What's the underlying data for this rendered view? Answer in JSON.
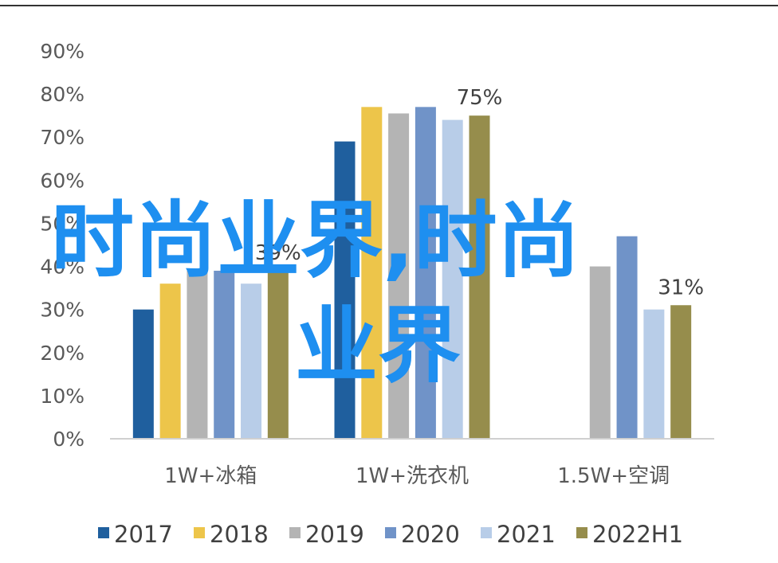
{
  "chart_data": {
    "type": "bar",
    "categories": [
      "1W+冰箱",
      "1W+洗衣机",
      "1.5W+空调"
    ],
    "series": [
      {
        "name": "2017",
        "color": "#1f5f9e",
        "values": [
          30,
          69,
          null
        ]
      },
      {
        "name": "2018",
        "color": "#edc54a",
        "values": [
          36,
          77,
          null
        ]
      },
      {
        "name": "2019",
        "color": "#b4b4b4",
        "values": [
          39,
          75.5,
          40
        ]
      },
      {
        "name": "2020",
        "color": "#7093c8",
        "values": [
          39,
          77,
          47
        ]
      },
      {
        "name": "2021",
        "color": "#b8cde8",
        "values": [
          36,
          74,
          30
        ]
      },
      {
        "name": "2022H1",
        "color": "#968d4c",
        "values": [
          39,
          75,
          31
        ]
      }
    ],
    "data_labels": [
      {
        "category_index": 0,
        "series_index": 5,
        "text": "39%"
      },
      {
        "category_index": 1,
        "series_index": 5,
        "text": "75%"
      },
      {
        "category_index": 2,
        "series_index": 5,
        "text": "31%"
      }
    ],
    "y_ticks": [
      "0%",
      "10%",
      "20%",
      "30%",
      "40%",
      "50%",
      "60%",
      "70%",
      "80%",
      "90%"
    ],
    "ylim": [
      0,
      90
    ],
    "grid": false,
    "legend_position": "bottom"
  },
  "overlay_text": {
    "line1": "时尚业界,时尚",
    "line2": "业界",
    "color": "#1e8ff0"
  }
}
